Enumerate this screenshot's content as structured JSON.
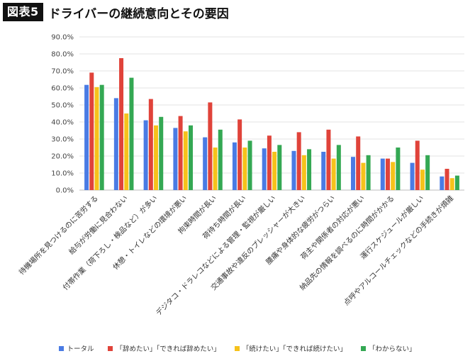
{
  "header": {
    "badge": "図表5",
    "title": "ドライバーの継続意向とその要因"
  },
  "chart_data": {
    "type": "bar",
    "categories": [
      "待機場所を見つけるのに苦労する",
      "給与が労働に見合わない",
      "付帯作業（荷下ろし・検品など）が多い",
      "休憩・トイレなどの環境が悪い",
      "拘束時間が長い",
      "荷待ち時間が長い",
      "デジタコ・ドラレコなどによる管理・監視が厳しい",
      "交通事故や違反のプレッシャーが大きい",
      "腰痛や身体的な疲労がつらい",
      "荷主や関係者の対応が悪い",
      "納品先の情報を調べるのに時間がかかる",
      "運行スケジュールが厳しい",
      "点呼やアルコールチェックなどの手続きが煩雑"
    ],
    "series": [
      {
        "name": "トータル",
        "color": "#4a7be4",
        "values": [
          61.8,
          54.0,
          41.0,
          36.5,
          31.0,
          28.0,
          24.5,
          23.0,
          22.5,
          19.5,
          18.5,
          16.0,
          8.0
        ]
      },
      {
        "name": "「辞めたい」「できれば辞めたい」",
        "color": "#e0433a",
        "values": [
          69.0,
          77.5,
          53.5,
          43.5,
          51.5,
          41.5,
          32.0,
          34.0,
          35.5,
          31.5,
          18.5,
          29.0,
          12.5
        ]
      },
      {
        "name": "「続けたい」「できれば続けたい」",
        "color": "#f6c21b",
        "values": [
          60.5,
          45.0,
          38.0,
          34.5,
          25.0,
          25.0,
          22.5,
          20.5,
          18.5,
          16.0,
          16.5,
          12.0,
          7.0
        ]
      },
      {
        "name": "「わからない」",
        "color": "#34a853",
        "values": [
          61.8,
          66.0,
          43.0,
          38.0,
          35.5,
          29.0,
          26.5,
          24.0,
          26.5,
          20.5,
          25.0,
          20.5,
          8.5
        ]
      }
    ],
    "y_ticks": [
      "0.0%",
      "10.0%",
      "20.0%",
      "30.0%",
      "40.0%",
      "50.0%",
      "60.0%",
      "70.0%",
      "80.0%",
      "90.0%"
    ],
    "ylim": [
      0,
      90
    ],
    "grid": true,
    "legend_position": "bottom"
  }
}
